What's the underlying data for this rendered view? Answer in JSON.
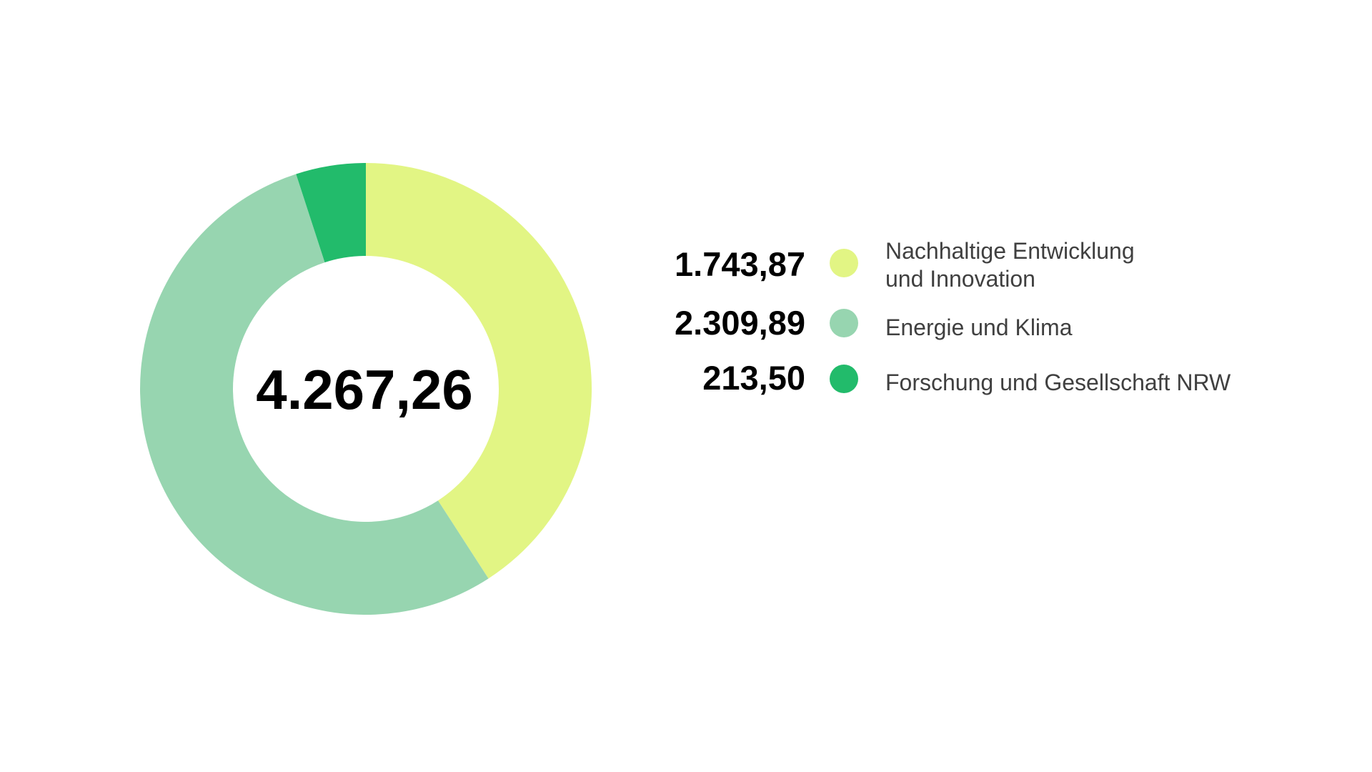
{
  "chart_data": {
    "type": "pie",
    "variant": "donut",
    "total_label": "4.267,26",
    "slices": [
      {
        "label_lines": [
          "Nachhaltige Entwicklung",
          "und Innovation"
        ],
        "value": 1743.87,
        "value_label": "1.743,87",
        "color": "#e2f584"
      },
      {
        "label_lines": [
          "Energie und Klima"
        ],
        "value": 2309.89,
        "value_label": "2.309,89",
        "color": "#97d5b0"
      },
      {
        "label_lines": [
          "Forschung und Gesellschaft NRW"
        ],
        "value": 213.5,
        "value_label": "213,50",
        "color": "#22bb6b"
      }
    ],
    "legend_position": "right"
  }
}
